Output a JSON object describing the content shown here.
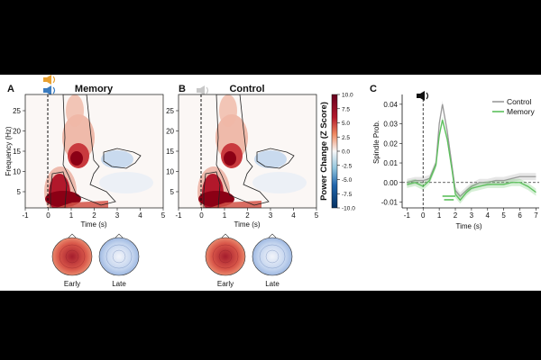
{
  "letters": {
    "a": "A",
    "b": "B",
    "c": "C"
  },
  "icons": {
    "speaker_memory": "speaker-icon-orange-blue",
    "speaker_control": "speaker-icon-gray",
    "speaker_c": "speaker-icon-black"
  },
  "colors": {
    "memory": "#5cc05c",
    "control": "#9a9a9a",
    "red": "#b2182b",
    "blue": "#2166ac",
    "cue_orange": "#e8a030",
    "cue_blue": "#3a7bbf"
  },
  "heatmaps": [
    {
      "title": "Memory",
      "ylabel": "Frequency (Hz)",
      "xlabel": "Time (s)",
      "xticks": [
        "-1",
        "0",
        "1",
        "2",
        "3",
        "4",
        "5"
      ],
      "yticks": [
        "5",
        "10",
        "15",
        "20",
        "25"
      ]
    },
    {
      "title": "Control",
      "xlabel": "Time (s)",
      "xticks": [
        "-1",
        "0",
        "1",
        "2",
        "3",
        "4",
        "5"
      ],
      "yticks": [
        "5",
        "10",
        "15",
        "20",
        "25"
      ]
    }
  ],
  "colorbar": {
    "title": "Power Change (Z Score)",
    "ticks": [
      "10.0",
      "7.5",
      "5.0",
      "2.5",
      "0.0",
      "-2.5",
      "-5.0",
      "-7.5",
      "-10.0"
    ],
    "range": [
      -10,
      10
    ]
  },
  "topo_labels": {
    "early": "Early",
    "late": "Late"
  },
  "chart_data": {
    "type": "line",
    "xlabel": "Time (s)",
    "ylabel": "Spindle Prob.",
    "xlim": [
      -1.3,
      7.2
    ],
    "ylim": [
      -0.013,
      0.045
    ],
    "xticks": [
      "-1",
      "0",
      "1",
      "2",
      "3",
      "4",
      "5",
      "6",
      "7"
    ],
    "yticks": [
      "-0.01",
      "0.00",
      "0.01",
      "0.02",
      "0.03",
      "0.04"
    ],
    "legend_position": "top-right",
    "x": [
      -1.0,
      -0.5,
      0.0,
      0.4,
      0.8,
      1.0,
      1.2,
      1.5,
      1.8,
      2.0,
      2.3,
      2.7,
      3.0,
      3.5,
      4.0,
      4.5,
      5.0,
      5.5,
      6.0,
      6.5,
      7.0
    ],
    "series": [
      {
        "name": "Control",
        "values": [
          0.0,
          0.001,
          0.001,
          0.002,
          0.01,
          0.03,
          0.04,
          0.026,
          0.008,
          -0.004,
          -0.007,
          -0.004,
          -0.002,
          0.0,
          0.0,
          0.001,
          0.001,
          0.002,
          0.003,
          0.003,
          0.003
        ]
      },
      {
        "name": "Memory",
        "values": [
          -0.001,
          0.0,
          -0.002,
          0.001,
          0.009,
          0.024,
          0.032,
          0.022,
          0.006,
          -0.006,
          -0.009,
          -0.005,
          -0.003,
          -0.002,
          -0.001,
          -0.001,
          -0.001,
          0.0,
          0.0,
          -0.002,
          -0.005
        ]
      }
    ],
    "significance_bars": [
      [
        1.2,
        2.0
      ],
      [
        1.3,
        1.9
      ]
    ],
    "zero_line": true
  }
}
